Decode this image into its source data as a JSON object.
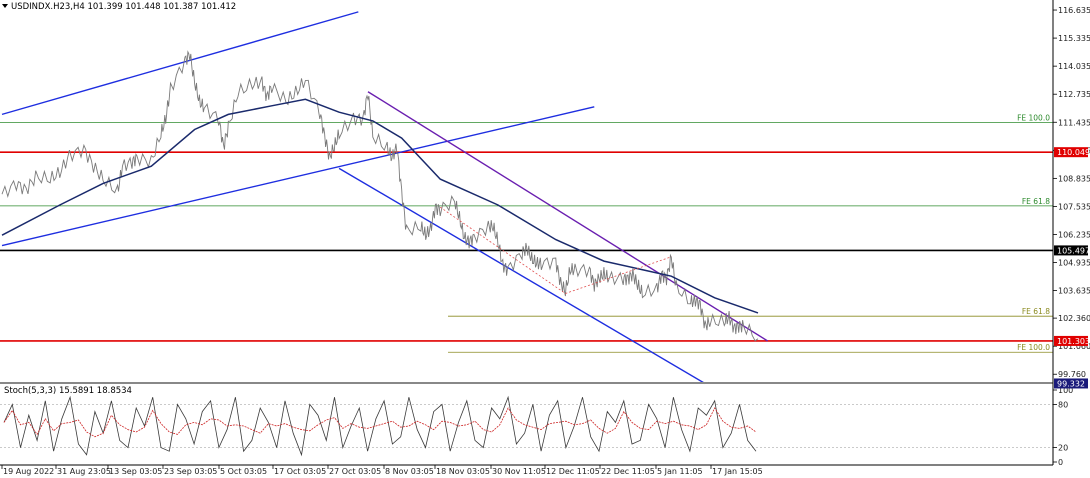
{
  "header": {
    "symbol_line": "USDINDX.H23,H4  101.399 101.448 101.387 101.412"
  },
  "oscillator": {
    "label": "Stoch(5,3,3) 15.5891 18.8534",
    "ticks": [
      "100",
      "80",
      "20",
      "0"
    ]
  },
  "price_ticks": [
    "116.635",
    "115.335",
    "114.035",
    "112.735",
    "111.435",
    "110.135",
    "108.835",
    "107.535",
    "106.235",
    "104.935",
    "103.635",
    "102.360",
    "101.060",
    "99.760"
  ],
  "time_ticks": [
    "19 Aug 2022",
    "31 Aug 23:05",
    "13 Sep 03:05",
    "23 Sep 03:05",
    "5 Oct 03:05",
    "17 Oct 03:05",
    "27 Oct 03:05",
    "8 Nov 03:05",
    "18 Nov 03:05",
    "30 Nov 11:05",
    "12 Dec 11:05",
    "22 Dec 11:05",
    "5 Jan 11:05",
    "17 Jan 15:05"
  ],
  "levels": [
    {
      "price": 110.049,
      "label": "110.049",
      "color": "#e00000",
      "style": "solid-thick",
      "tag": true
    },
    {
      "price": 105.497,
      "label": "105.497",
      "color": "#000000",
      "style": "solid-thick",
      "tag": true
    },
    {
      "price": 101.303,
      "label": "101.303",
      "color": "#e00000",
      "style": "solid-thick",
      "tag": true
    },
    {
      "price": 99.332,
      "label": "99.332",
      "color": "#1a1a7a",
      "style": "solid",
      "tag": true
    }
  ],
  "fib_levels": [
    {
      "price": 111.43,
      "label": "FE 100.0",
      "color": "#2e8b2e"
    },
    {
      "price": 107.56,
      "label": "FE 61.8",
      "color": "#2e8b2e"
    },
    {
      "price": 102.45,
      "label": "FE 61.8",
      "color": "#8b8b20"
    },
    {
      "price": 100.78,
      "label": "FE 100.0",
      "color": "#8b8b20"
    }
  ],
  "colors": {
    "price": "#7a7a7a",
    "ma": "#1a2a6c",
    "channel": "#1e2ee0",
    "purple": "#6a1fb0"
  },
  "chart_data": {
    "type": "line",
    "x_range": [
      "19 Aug 2022",
      "23 Jan 2023"
    ],
    "ylim": [
      99.4,
      117.1
    ],
    "price_series": [
      [
        "19 Aug 2022",
        108.1
      ],
      [
        "22 Aug 2022",
        108.6
      ],
      [
        "24 Aug 2022",
        108.3
      ],
      [
        "26 Aug 2022",
        108.9
      ],
      [
        "29 Aug 2022",
        108.8
      ],
      [
        "31 Aug 2022",
        109.1
      ],
      [
        "2 Sep 2022",
        109.9
      ],
      [
        "5 Sep 2022",
        110.2
      ],
      [
        "7 Sep 2022",
        109.4
      ],
      [
        "9 Sep 2022",
        108.8
      ],
      [
        "12 Sep 2022",
        108.2
      ],
      [
        "13 Sep 2022",
        109.4
      ],
      [
        "15 Sep 2022",
        109.6
      ],
      [
        "16 Sep 2022",
        109.8
      ],
      [
        "19 Sep 2022",
        109.6
      ],
      [
        "21 Sep 2022",
        110.9
      ],
      [
        "22 Sep 2022",
        111.6
      ],
      [
        "23 Sep 2022",
        113.0
      ],
      [
        "26 Sep 2022",
        114.3
      ],
      [
        "27 Sep 2022",
        114.6
      ],
      [
        "28 Sep 2022",
        113.3
      ],
      [
        "29 Sep 2022",
        112.4
      ],
      [
        "30 Sep 2022",
        112.1
      ],
      [
        "3 Oct 2022",
        111.6
      ],
      [
        "4 Oct 2022",
        110.3
      ],
      [
        "5 Oct 2022",
        111.2
      ],
      [
        "7 Oct 2022",
        112.8
      ],
      [
        "10 Oct 2022",
        113.2
      ],
      [
        "12 Oct 2022",
        113.3
      ],
      [
        "13 Oct 2022",
        112.6
      ],
      [
        "14 Oct 2022",
        113.1
      ],
      [
        "17 Oct 2022",
        112.4
      ],
      [
        "19 Oct 2022",
        112.8
      ],
      [
        "21 Oct 2022",
        113.4
      ],
      [
        "24 Oct 2022",
        111.9
      ],
      [
        "25 Oct 2022",
        110.8
      ],
      [
        "26 Oct 2022",
        109.8
      ],
      [
        "27 Oct 2022",
        110.3
      ],
      [
        "28 Oct 2022",
        110.9
      ],
      [
        "31 Oct 2022",
        111.6
      ],
      [
        "2 Nov 2022",
        111.6
      ],
      [
        "3 Nov 2022",
        112.8
      ],
      [
        "4 Nov 2022",
        110.8
      ],
      [
        "7 Nov 2022",
        110.2
      ],
      [
        "8 Nov 2022",
        109.8
      ],
      [
        "9 Nov 2022",
        110.3
      ],
      [
        "10 Nov 2022",
        108.2
      ],
      [
        "11 Nov 2022",
        106.4
      ],
      [
        "14 Nov 2022",
        106.6
      ],
      [
        "15 Nov 2022",
        106.2
      ],
      [
        "16 Nov 2022",
        106.5
      ],
      [
        "17 Nov 2022",
        107.5
      ],
      [
        "18 Nov 2022",
        107.4
      ],
      [
        "21 Nov 2022",
        107.8
      ],
      [
        "22 Nov 2022",
        107.0
      ],
      [
        "23 Nov 2022",
        106.1
      ],
      [
        "24 Nov 2022",
        105.9
      ],
      [
        "25 Nov 2022",
        106.1
      ],
      [
        "28 Nov 2022",
        106.6
      ],
      [
        "29 Nov 2022",
        106.6
      ],
      [
        "30 Nov 2022",
        105.9
      ],
      [
        "1 Dec 2022",
        104.8
      ],
      [
        "2 Dec 2022",
        104.6
      ],
      [
        "5 Dec 2022",
        105.4
      ],
      [
        "6 Dec 2022",
        105.6
      ],
      [
        "7 Dec 2022",
        105.1
      ],
      [
        "8 Dec 2022",
        104.9
      ],
      [
        "9 Dec 2022",
        104.9
      ],
      [
        "12 Dec 2022",
        105.0
      ],
      [
        "13 Dec 2022",
        104.0
      ],
      [
        "14 Dec 2022",
        103.6
      ],
      [
        "15 Dec 2022",
        104.6
      ],
      [
        "16 Dec 2022",
        104.6
      ],
      [
        "19 Dec 2022",
        104.6
      ],
      [
        "20 Dec 2022",
        103.9
      ],
      [
        "21 Dec 2022",
        104.2
      ],
      [
        "22 Dec 2022",
        104.4
      ],
      [
        "23 Dec 2022",
        104.2
      ],
      [
        "26 Dec 2022",
        104.2
      ],
      [
        "27 Dec 2022",
        104.2
      ],
      [
        "28 Dec 2022",
        104.4
      ],
      [
        "29 Dec 2022",
        103.9
      ],
      [
        "30 Dec 2022",
        103.5
      ],
      [
        "2 Jan 2023",
        103.7
      ],
      [
        "3 Jan 2023",
        104.4
      ],
      [
        "4 Jan 2023",
        104.2
      ],
      [
        "5 Jan 2023",
        105.2
      ],
      [
        "6 Jan 2023",
        103.8
      ],
      [
        "9 Jan 2023",
        103.1
      ],
      [
        "10 Jan 2023",
        103.2
      ],
      [
        "11 Jan 2023",
        103.0
      ],
      [
        "12 Jan 2023",
        102.0
      ],
      [
        "13 Jan 2023",
        102.2
      ],
      [
        "16 Jan 2023",
        102.2
      ],
      [
        "17 Jan 2023",
        102.4
      ],
      [
        "18 Jan 2023",
        101.9
      ],
      [
        "19 Jan 2023",
        102.0
      ],
      [
        "20 Jan 2023",
        102.0
      ],
      [
        "23 Jan 2023",
        101.4
      ]
    ],
    "ma_series": [
      [
        "19 Aug 2022",
        106.2
      ],
      [
        "31 Aug 2022",
        107.6
      ],
      [
        "9 Sep 2022",
        108.6
      ],
      [
        "19 Sep 2022",
        109.4
      ],
      [
        "28 Sep 2022",
        111.1
      ],
      [
        "5 Oct 2022",
        111.8
      ],
      [
        "14 Oct 2022",
        112.2
      ],
      [
        "21 Oct 2022",
        112.5
      ],
      [
        "28 Oct 2022",
        111.9
      ],
      [
        "4 Nov 2022",
        111.5
      ],
      [
        "10 Nov 2022",
        110.7
      ],
      [
        "18 Nov 2022",
        108.8
      ],
      [
        "30 Nov 2022",
        107.6
      ],
      [
        "12 Dec 2022",
        106.0
      ],
      [
        "22 Dec 2022",
        105.0
      ],
      [
        "5 Jan 2023",
        104.3
      ],
      [
        "14 Jan 2023",
        103.3
      ],
      [
        "23 Jan 2023",
        102.6
      ]
    ],
    "trend_lines": [
      {
        "name": "upper-channel",
        "color": "#1e2ee0",
        "from": [
          "19 Aug 2022",
          111.8
        ],
        "to": [
          "1 Nov 2022",
          116.55
        ]
      },
      {
        "name": "lower-channel",
        "color": "#1e2ee0",
        "from": [
          "19 Aug 2022",
          105.72
        ],
        "to": [
          "20 Dec 2022",
          112.15
        ]
      },
      {
        "name": "falling-channel",
        "color": "#1e2ee0",
        "from": [
          "28 Oct 2022",
          109.3
        ],
        "to": [
          "12 Jan 2023",
          99.33
        ]
      },
      {
        "name": "resistance-line",
        "color": "#6a1fb0",
        "from": [
          "3 Nov 2022",
          112.85
        ],
        "to": [
          "25 Jan 2023",
          101.3
        ]
      }
    ],
    "stochastic": {
      "ylim": [
        0,
        100
      ],
      "levels": [
        20,
        80
      ],
      "k": [
        55,
        80,
        20,
        65,
        30,
        85,
        15,
        60,
        90,
        25,
        10,
        70,
        40,
        85,
        30,
        20,
        75,
        50,
        90,
        20,
        15,
        80,
        60,
        25,
        70,
        85,
        20,
        45,
        90,
        15,
        30,
        75,
        55,
        20,
        85,
        40,
        10,
        80,
        65,
        30,
        90,
        20,
        50,
        75,
        15,
        60,
        85,
        25,
        35,
        90,
        45,
        20,
        70,
        80,
        15,
        55,
        85,
        30,
        20,
        75,
        60,
        90,
        25,
        40,
        80,
        15,
        65,
        85,
        20,
        50,
        90,
        35,
        15,
        70,
        55,
        85,
        25,
        30,
        80,
        60,
        20,
        90,
        45,
        15,
        75,
        65,
        85,
        20,
        40,
        80,
        30,
        15
      ]
    }
  }
}
